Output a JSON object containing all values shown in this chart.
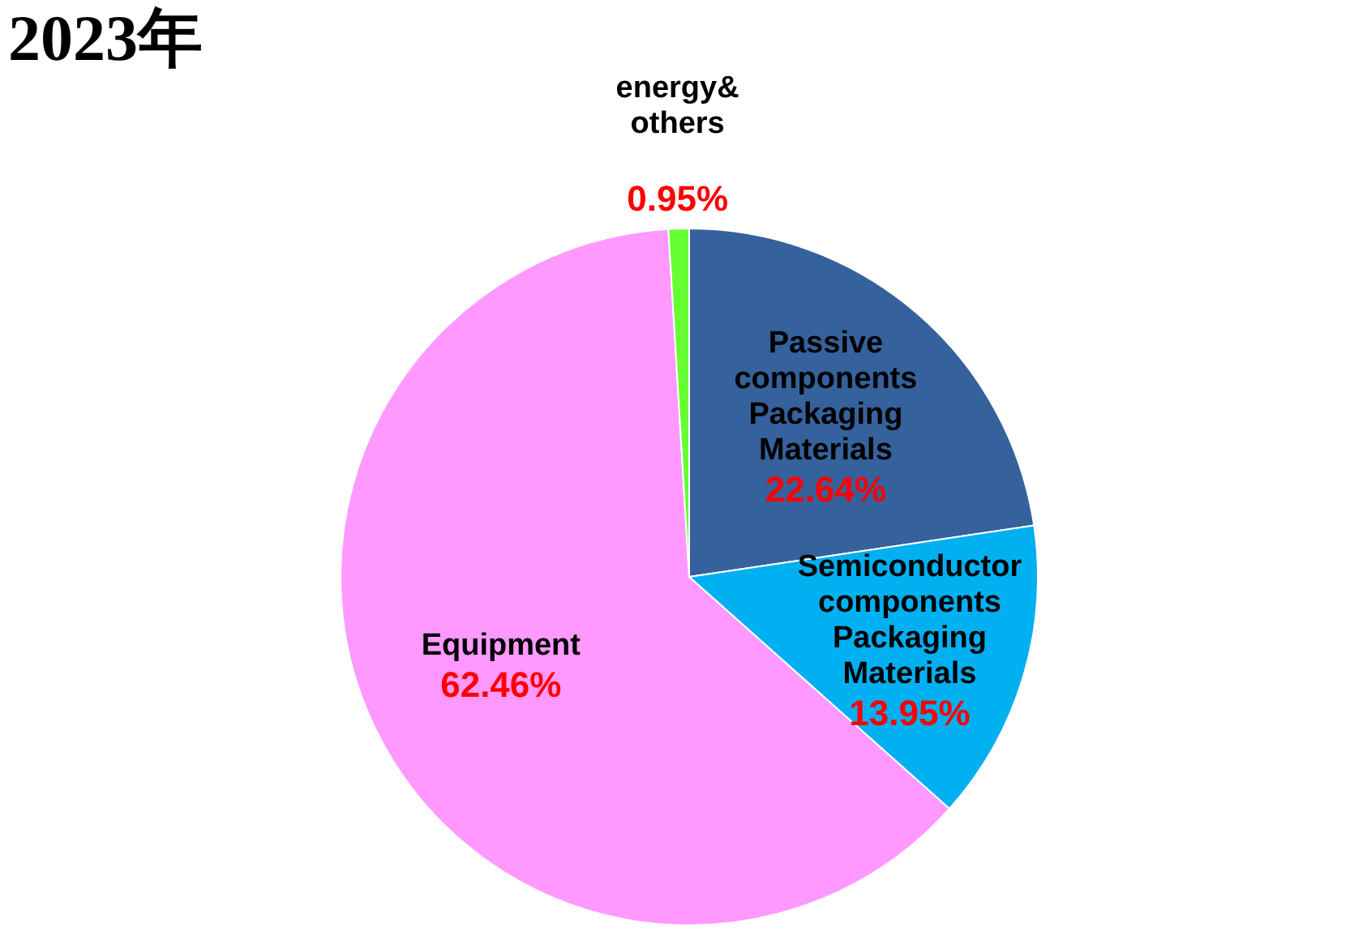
{
  "chart_data": {
    "type": "pie",
    "title": "2023年",
    "categories": [
      "Passive components Packaging Materials",
      "Semiconductor components Packaging Materials",
      "Equipment",
      "energy& others"
    ],
    "values": [
      22.64,
      13.95,
      62.46,
      0.95
    ],
    "value_labels": [
      "22.64%",
      "13.95%",
      "62.46%",
      "0.95%"
    ],
    "colors": [
      "#35629c",
      "#00b0f0",
      "#ff99ff",
      "#66ff33"
    ],
    "legend": false
  }
}
